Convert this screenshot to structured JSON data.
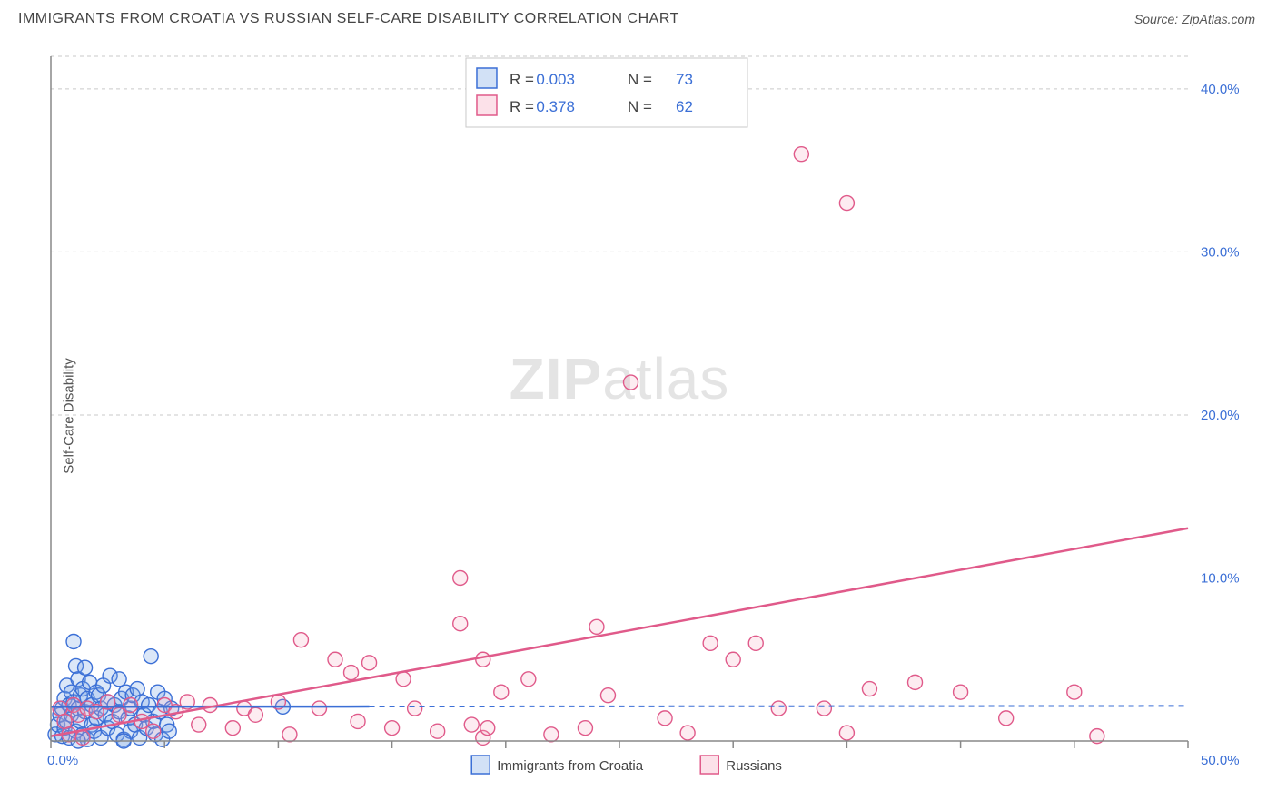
{
  "title": "IMMIGRANTS FROM CROATIA VS RUSSIAN SELF-CARE DISABILITY CORRELATION CHART",
  "source": "Source: ZipAtlas.com",
  "ylabel": "Self-Care Disability",
  "watermark_a": "ZIP",
  "watermark_b": "atlas",
  "colors": {
    "croatia_fill": "#7ea8e6",
    "croatia_stroke": "#3b6fd6",
    "russia_fill": "#f7a8c0",
    "russia_stroke": "#e05a8a",
    "grid": "#c9c9c9",
    "axis": "#888888",
    "tick_text": "#3b6fd6",
    "title_text": "#444444",
    "legend_val": "#3b6fd6",
    "legend_label": "#444444"
  },
  "chart": {
    "type": "scatter",
    "xlim": [
      0,
      50
    ],
    "ylim": [
      0,
      42
    ],
    "x_tick_step": 5,
    "y_ticks": [
      10,
      20,
      30,
      40
    ],
    "x_tick_labels": [
      "0.0%",
      "",
      "",
      "",
      "",
      "",
      "",
      "",
      "",
      "",
      "50.0%"
    ],
    "y_tick_labels": [
      "10.0%",
      "20.0%",
      "30.0%",
      "40.0%"
    ],
    "marker_radius": 8,
    "trend_croatia": {
      "y_intercept": 2.1,
      "slope": 0.001,
      "solid_xmax": 14
    },
    "trend_russia": {
      "y_intercept": 0.3,
      "slope": 0.255
    }
  },
  "legend_top": {
    "rows": [
      {
        "r_label": "R =",
        "r_value": "0.003",
        "n_label": "N =",
        "n_value": "73",
        "swatch": "croatia"
      },
      {
        "r_label": "R =",
        "r_value": "0.378",
        "n_label": "N =",
        "n_value": "62",
        "swatch": "russia"
      }
    ]
  },
  "legend_bottom": {
    "items": [
      {
        "label": "Immigrants from Croatia",
        "swatch": "croatia"
      },
      {
        "label": "Russians",
        "swatch": "russia"
      }
    ]
  },
  "series": {
    "croatia": {
      "points": [
        [
          0.2,
          0.4
        ],
        [
          0.3,
          1.0
        ],
        [
          0.4,
          1.6
        ],
        [
          0.5,
          0.3
        ],
        [
          0.5,
          2.0
        ],
        [
          0.6,
          2.6
        ],
        [
          0.6,
          0.8
        ],
        [
          0.7,
          3.4
        ],
        [
          0.7,
          1.2
        ],
        [
          0.8,
          2.2
        ],
        [
          0.8,
          0.2
        ],
        [
          0.9,
          3.0
        ],
        [
          0.9,
          1.6
        ],
        [
          1.0,
          6.1
        ],
        [
          1.0,
          2.4
        ],
        [
          1.1,
          0.6
        ],
        [
          1.1,
          4.6
        ],
        [
          1.2,
          3.8
        ],
        [
          1.2,
          2.0
        ],
        [
          1.3,
          1.2
        ],
        [
          1.3,
          2.8
        ],
        [
          1.4,
          0.4
        ],
        [
          1.4,
          3.2
        ],
        [
          1.5,
          4.5
        ],
        [
          1.5,
          1.8
        ],
        [
          1.6,
          0.1
        ],
        [
          1.6,
          2.6
        ],
        [
          1.7,
          3.6
        ],
        [
          1.8,
          1.0
        ],
        [
          1.8,
          2.2
        ],
        [
          1.9,
          0.6
        ],
        [
          2.0,
          3.0
        ],
        [
          2.0,
          1.4
        ],
        [
          2.1,
          2.8
        ],
        [
          2.2,
          0.2
        ],
        [
          2.2,
          2.0
        ],
        [
          2.3,
          3.4
        ],
        [
          2.4,
          1.6
        ],
        [
          2.5,
          0.8
        ],
        [
          2.5,
          2.4
        ],
        [
          2.6,
          4.0
        ],
        [
          2.7,
          1.2
        ],
        [
          2.8,
          2.2
        ],
        [
          2.9,
          0.4
        ],
        [
          3.0,
          3.8
        ],
        [
          3.0,
          1.8
        ],
        [
          3.1,
          2.6
        ],
        [
          3.2,
          0.1
        ],
        [
          3.3,
          3.0
        ],
        [
          3.4,
          1.4
        ],
        [
          3.5,
          2.0
        ],
        [
          3.5,
          0.6
        ],
        [
          3.6,
          2.8
        ],
        [
          3.7,
          1.0
        ],
        [
          3.8,
          3.2
        ],
        [
          3.9,
          0.2
        ],
        [
          4.0,
          2.4
        ],
        [
          4.1,
          1.6
        ],
        [
          4.2,
          0.8
        ],
        [
          4.3,
          2.2
        ],
        [
          4.4,
          5.2
        ],
        [
          4.5,
          1.2
        ],
        [
          4.6,
          0.4
        ],
        [
          4.7,
          3.0
        ],
        [
          4.8,
          1.8
        ],
        [
          4.9,
          0.1
        ],
        [
          5.0,
          2.6
        ],
        [
          5.1,
          1.0
        ],
        [
          5.2,
          0.6
        ],
        [
          5.3,
          2.0
        ],
        [
          10.2,
          2.1
        ],
        [
          3.2,
          0.0
        ],
        [
          1.2,
          0.0
        ]
      ]
    },
    "russians": {
      "points": [
        [
          0.4,
          2.0
        ],
        [
          0.6,
          1.2
        ],
        [
          0.8,
          0.4
        ],
        [
          1.0,
          2.2
        ],
        [
          1.2,
          1.6
        ],
        [
          1.4,
          0.2
        ],
        [
          1.6,
          2.0
        ],
        [
          2.0,
          1.8
        ],
        [
          2.5,
          2.4
        ],
        [
          3.0,
          1.6
        ],
        [
          3.5,
          2.2
        ],
        [
          4.0,
          1.2
        ],
        [
          4.5,
          0.6
        ],
        [
          5.0,
          2.2
        ],
        [
          5.5,
          1.8
        ],
        [
          6.0,
          2.4
        ],
        [
          6.5,
          1.0
        ],
        [
          7.0,
          2.2
        ],
        [
          8.0,
          0.8
        ],
        [
          8.5,
          2.0
        ],
        [
          9.0,
          1.6
        ],
        [
          10.0,
          2.4
        ],
        [
          10.5,
          0.4
        ],
        [
          11.0,
          6.2
        ],
        [
          11.8,
          2.0
        ],
        [
          12.5,
          5.0
        ],
        [
          13.2,
          4.2
        ],
        [
          13.5,
          1.2
        ],
        [
          14.0,
          4.8
        ],
        [
          15.0,
          0.8
        ],
        [
          15.5,
          3.8
        ],
        [
          16.0,
          2.0
        ],
        [
          17.0,
          0.6
        ],
        [
          18.0,
          10.0
        ],
        [
          18.0,
          7.2
        ],
        [
          18.5,
          1.0
        ],
        [
          19.0,
          0.2
        ],
        [
          19.2,
          0.8
        ],
        [
          19.8,
          3.0
        ],
        [
          19.0,
          5.0
        ],
        [
          21.0,
          3.8
        ],
        [
          22.0,
          0.4
        ],
        [
          23.5,
          0.8
        ],
        [
          24.0,
          7.0
        ],
        [
          24.5,
          2.8
        ],
        [
          25.5,
          22.0
        ],
        [
          27.0,
          1.4
        ],
        [
          28.0,
          0.5
        ],
        [
          29.0,
          6.0
        ],
        [
          30.0,
          5.0
        ],
        [
          31.0,
          6.0
        ],
        [
          32.0,
          2.0
        ],
        [
          33.0,
          36.0
        ],
        [
          34.0,
          2.0
        ],
        [
          35.0,
          0.5
        ],
        [
          35.0,
          33.0
        ],
        [
          36.0,
          3.2
        ],
        [
          38.0,
          3.6
        ],
        [
          40.0,
          3.0
        ],
        [
          42.0,
          1.4
        ],
        [
          45.0,
          3.0
        ],
        [
          46.0,
          0.3
        ]
      ]
    }
  }
}
